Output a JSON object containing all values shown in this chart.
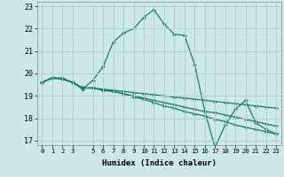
{
  "xlabel": "Humidex (Indice chaleur)",
  "bg_color": "#cce8e8",
  "line_color": "#1a7a6e",
  "grid_color": "#b0d0d0",
  "xlim": [
    -0.5,
    23.5
  ],
  "ylim": [
    16.8,
    23.2
  ],
  "yticks": [
    17,
    18,
    19,
    20,
    21,
    22,
    23
  ],
  "xticks": [
    0,
    1,
    2,
    3,
    5,
    6,
    7,
    8,
    9,
    10,
    11,
    12,
    13,
    14,
    15,
    16,
    17,
    18,
    19,
    20,
    21,
    22,
    23
  ],
  "series": [
    [
      19.6,
      19.8,
      19.8,
      19.6,
      19.3,
      19.7,
      20.3,
      21.4,
      21.8,
      22.0,
      22.5,
      22.85,
      22.2,
      21.75,
      21.7,
      20.4,
      18.3,
      16.7,
      17.7,
      18.4,
      18.8,
      17.8,
      17.5,
      17.3
    ],
    [
      19.6,
      19.8,
      19.75,
      19.6,
      19.35,
      19.35,
      19.25,
      19.2,
      19.1,
      18.95,
      18.85,
      18.7,
      18.55,
      18.45,
      18.3,
      18.2,
      18.1,
      17.95,
      17.85,
      17.7,
      17.6,
      17.5,
      17.4,
      17.3
    ],
    [
      19.6,
      19.8,
      19.75,
      19.6,
      19.35,
      19.35,
      19.25,
      19.2,
      19.1,
      19.0,
      18.9,
      18.8,
      18.7,
      18.6,
      18.5,
      18.4,
      18.3,
      18.25,
      18.15,
      18.05,
      17.95,
      17.85,
      17.75,
      17.65
    ],
    [
      19.6,
      19.8,
      19.75,
      19.6,
      19.35,
      19.35,
      19.3,
      19.25,
      19.2,
      19.15,
      19.1,
      19.05,
      19.0,
      18.95,
      18.9,
      18.85,
      18.8,
      18.75,
      18.7,
      18.65,
      18.6,
      18.55,
      18.5,
      18.45
    ]
  ]
}
